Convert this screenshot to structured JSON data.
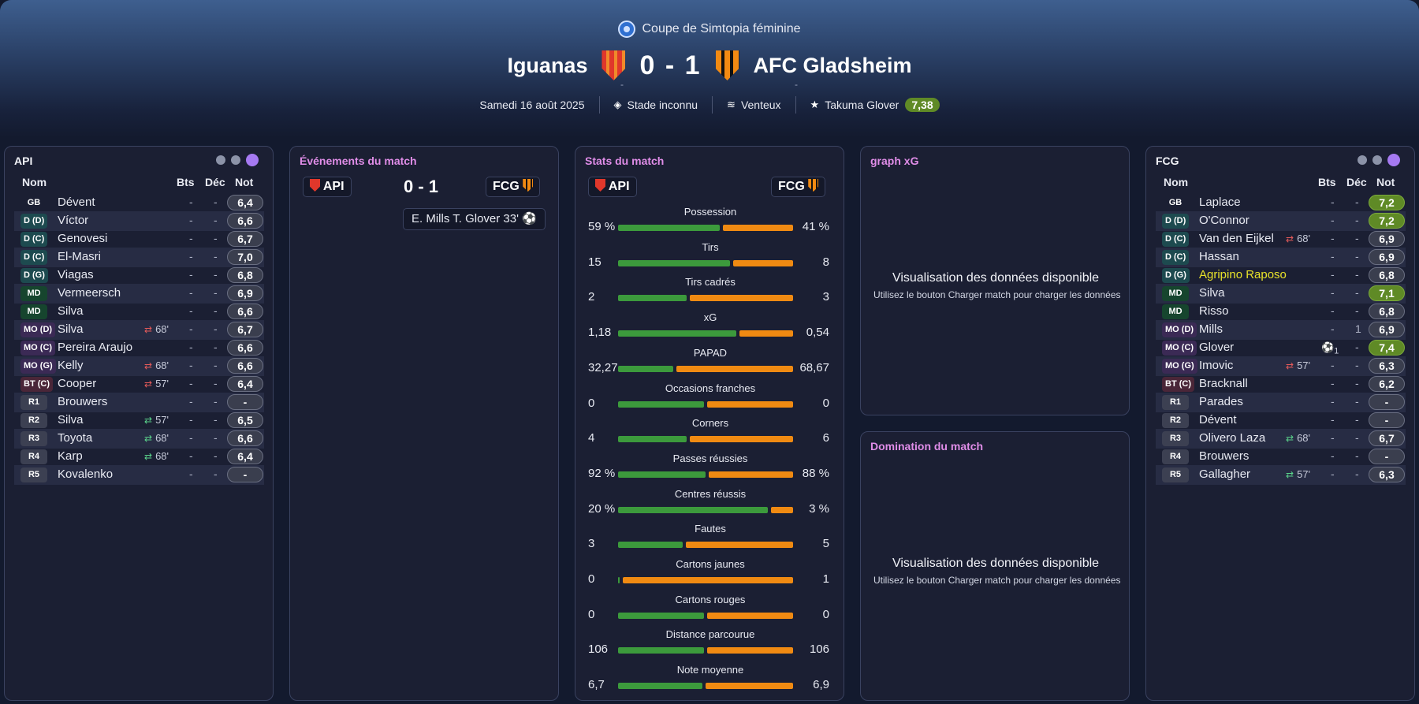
{
  "competition": "Coupe de Simtopia féminine",
  "match": {
    "home": "Iguanas",
    "away": "AFC Gladsheim",
    "score": "0 - 1",
    "home_sub": "-",
    "away_sub": "-",
    "date": "Samedi 16 août 2025",
    "stadium": "Stade inconnu",
    "weather": "Venteux",
    "motm": "Takuma Glover",
    "motm_rating": "7,38"
  },
  "colors": {
    "accent": "#e08de8",
    "home_bar": "#3c9a3c",
    "away_bar": "#f08a12",
    "good_rating": "#5f8a26"
  },
  "home_panel": {
    "title": "API",
    "headers": {
      "name": "Nom",
      "bts": "Bts",
      "dec": "Déc",
      "not": "Not"
    },
    "players": [
      {
        "pos": "GB",
        "name": "Dévent",
        "bts": "-",
        "dec": "-",
        "rating": "6,4"
      },
      {
        "pos": "D (D)",
        "name": "Víctor",
        "bts": "-",
        "dec": "-",
        "rating": "6,6"
      },
      {
        "pos": "D (C)",
        "name": "Genovesi",
        "bts": "-",
        "dec": "-",
        "rating": "6,7"
      },
      {
        "pos": "D (C)",
        "name": "El-Masri",
        "bts": "-",
        "dec": "-",
        "rating": "7,0"
      },
      {
        "pos": "D (G)",
        "name": "Viagas",
        "bts": "-",
        "dec": "-",
        "rating": "6,8"
      },
      {
        "pos": "MD",
        "name": "Vermeersch",
        "bts": "-",
        "dec": "-",
        "rating": "6,9"
      },
      {
        "pos": "MD",
        "name": "Silva",
        "bts": "-",
        "dec": "-",
        "rating": "6,6"
      },
      {
        "pos": "MO (D)",
        "name": "Silva",
        "sub": "68'",
        "bts": "-",
        "dec": "-",
        "rating": "6,7"
      },
      {
        "pos": "MO (C)",
        "name": "Pereira Araujo",
        "bts": "-",
        "dec": "-",
        "rating": "6,6"
      },
      {
        "pos": "MO (G)",
        "name": "Kelly",
        "sub": "68'",
        "bts": "-",
        "dec": "-",
        "rating": "6,6"
      },
      {
        "pos": "BT (C)",
        "name": "Cooper",
        "sub": "57'",
        "bts": "-",
        "dec": "-",
        "rating": "6,4"
      },
      {
        "pos": "R1",
        "name": "Brouwers",
        "bts": "-",
        "dec": "-",
        "rating": "-"
      },
      {
        "pos": "R2",
        "name": "Silva",
        "sub": "57'",
        "bts": "-",
        "dec": "-",
        "rating": "6,5"
      },
      {
        "pos": "R3",
        "name": "Toyota",
        "sub": "68'",
        "bts": "-",
        "dec": "-",
        "rating": "6,6"
      },
      {
        "pos": "R4",
        "name": "Karp",
        "sub": "68'",
        "bts": "-",
        "dec": "-",
        "rating": "6,4"
      },
      {
        "pos": "R5",
        "name": "Kovalenko",
        "bts": "-",
        "dec": "-",
        "rating": "-"
      }
    ]
  },
  "away_panel": {
    "title": "FCG",
    "headers": {
      "name": "Nom",
      "bts": "Bts",
      "dec": "Déc",
      "not": "Not"
    },
    "players": [
      {
        "pos": "GB",
        "name": "Laplace",
        "bts": "-",
        "dec": "-",
        "rating": "7,2"
      },
      {
        "pos": "D (D)",
        "name": "O'Connor",
        "bts": "-",
        "dec": "-",
        "rating": "7,2"
      },
      {
        "pos": "D (C)",
        "name": "Van den Eijkel",
        "sub": "68'",
        "bts": "-",
        "dec": "-",
        "rating": "6,9"
      },
      {
        "pos": "D (C)",
        "name": "Hassan",
        "bts": "-",
        "dec": "-",
        "rating": "6,9"
      },
      {
        "pos": "D (G)",
        "name": "Agripino Raposo",
        "bts": "-",
        "dec": "-",
        "rating": "6,8"
      },
      {
        "pos": "MD",
        "name": "Silva",
        "bts": "-",
        "dec": "-",
        "rating": "7,1"
      },
      {
        "pos": "MD",
        "name": "Risso",
        "bts": "-",
        "dec": "-",
        "rating": "6,8"
      },
      {
        "pos": "MO (D)",
        "name": "Mills",
        "bts": "-",
        "dec": "1",
        "rating": "6,9"
      },
      {
        "pos": "MO (C)",
        "name": "Glover",
        "goals": "1",
        "bts": "",
        "dec": "-",
        "rating": "7,4"
      },
      {
        "pos": "MO (G)",
        "name": "Imovic",
        "sub": "57'",
        "bts": "-",
        "dec": "-",
        "rating": "6,3"
      },
      {
        "pos": "BT (C)",
        "name": "Bracknall",
        "bts": "-",
        "dec": "-",
        "rating": "6,2"
      },
      {
        "pos": "R1",
        "name": "Parades",
        "bts": "-",
        "dec": "-",
        "rating": "-"
      },
      {
        "pos": "R2",
        "name": "Dévent",
        "bts": "-",
        "dec": "-",
        "rating": "-"
      },
      {
        "pos": "R3",
        "name": "Olivero Laza",
        "sub": "68'",
        "bts": "-",
        "dec": "-",
        "rating": "6,7"
      },
      {
        "pos": "R4",
        "name": "Brouwers",
        "bts": "-",
        "dec": "-",
        "rating": "-"
      },
      {
        "pos": "R5",
        "name": "Gallagher",
        "sub": "57'",
        "bts": "-",
        "dec": "-",
        "rating": "6,3"
      }
    ]
  },
  "events": {
    "title": "Événements du match",
    "home_tag": "API",
    "away_tag": "FCG",
    "score": "0 - 1",
    "goal": "E. Mills  T. Glover  33'"
  },
  "stats": {
    "title": "Stats du match",
    "home_tag": "API",
    "away_tag": "FCG",
    "rows": [
      {
        "label": "Possession",
        "home": "59 %",
        "away": "41 %",
        "hv": 59,
        "av": 41
      },
      {
        "label": "Tirs",
        "home": "15",
        "away": "8",
        "hv": 15,
        "av": 8
      },
      {
        "label": "Tirs cadrés",
        "home": "2",
        "away": "3",
        "hv": 2,
        "av": 3
      },
      {
        "label": "xG",
        "home": "1,18",
        "away": "0,54",
        "hv": 1.18,
        "av": 0.54
      },
      {
        "label": "PAPAD",
        "home": "32,27",
        "away": "68,67",
        "hv": 32.27,
        "av": 68.67
      },
      {
        "label": "Occasions franches",
        "home": "0",
        "away": "0",
        "hv": 0,
        "av": 0
      },
      {
        "label": "Corners",
        "home": "4",
        "away": "6",
        "hv": 4,
        "av": 6
      },
      {
        "label": "Passes réussies",
        "home": "92 %",
        "away": "88 %",
        "hv": 92,
        "av": 88
      },
      {
        "label": "Centres réussis",
        "home": "20 %",
        "away": "3 %",
        "hv": 20,
        "av": 3
      },
      {
        "label": "Fautes",
        "home": "3",
        "away": "5",
        "hv": 3,
        "av": 5
      },
      {
        "label": "Cartons jaunes",
        "home": "0",
        "away": "1",
        "hv": 0,
        "av": 1
      },
      {
        "label": "Cartons rouges",
        "home": "0",
        "away": "0",
        "hv": 0,
        "av": 0
      },
      {
        "label": "Distance parcourue",
        "home": "106",
        "away": "106",
        "hv": 106,
        "av": 106
      },
      {
        "label": "Note moyenne",
        "home": "6,7",
        "away": "6,9",
        "hv": 6.7,
        "av": 6.9
      }
    ]
  },
  "xg_panel": {
    "title": "graph xG",
    "message": "Visualisation des données disponible",
    "hint": "Utilisez le bouton Charger match pour charger les données"
  },
  "domination_panel": {
    "title": "Domination du match",
    "message": "Visualisation des données disponible",
    "hint": "Utilisez le bouton Charger match pour charger les données"
  }
}
